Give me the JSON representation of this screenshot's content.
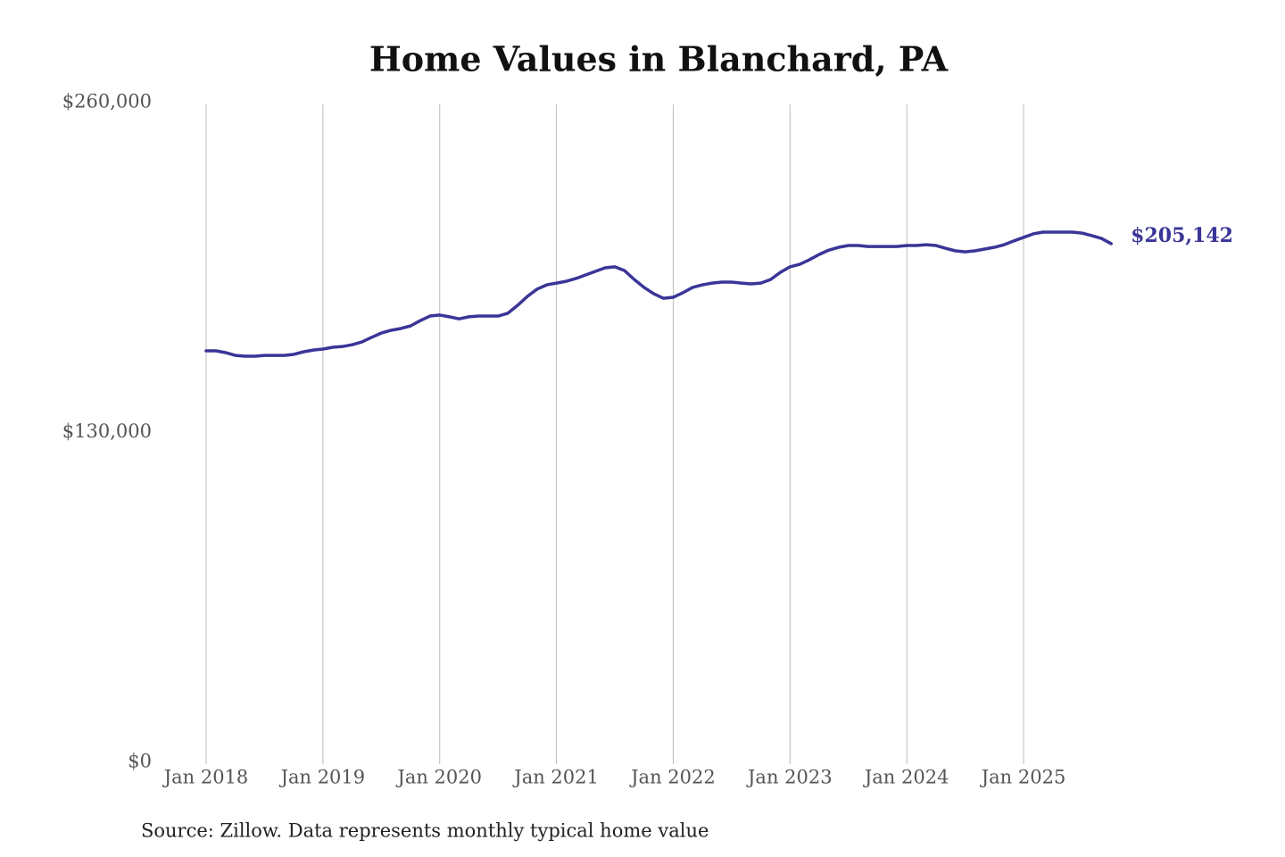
{
  "chart_data": {
    "type": "line",
    "title": "Home Values in Blanchard, PA",
    "source": "Source: Zillow. Data represents monthly typical home value",
    "categories": [
      "Jan 2018",
      null,
      null,
      null,
      null,
      null,
      null,
      null,
      null,
      null,
      null,
      null,
      "Jan 2019",
      null,
      null,
      null,
      null,
      null,
      null,
      null,
      null,
      null,
      null,
      null,
      "Jan 2020",
      null,
      null,
      null,
      null,
      null,
      null,
      null,
      null,
      null,
      null,
      null,
      "Jan 2021",
      null,
      null,
      null,
      null,
      null,
      null,
      null,
      null,
      null,
      null,
      null,
      "Jan 2022",
      null,
      null,
      null,
      null,
      null,
      null,
      null,
      null,
      null,
      null,
      null,
      "Jan 2023",
      null,
      null,
      null,
      null,
      null,
      null,
      null,
      null,
      null,
      null,
      null,
      "Jan 2024",
      null,
      null,
      null,
      null,
      null,
      null,
      null,
      null,
      null,
      null,
      null,
      "Jan 2025",
      null,
      null,
      null,
      null,
      null,
      null,
      null,
      null,
      null
    ],
    "series": [
      {
        "color": "#3a3597",
        "values": [
          162900,
          162900,
          162200,
          161100,
          160800,
          160800,
          161100,
          161100,
          161100,
          161500,
          162500,
          163200,
          163600,
          164300,
          164600,
          165300,
          166400,
          168200,
          169900,
          171000,
          171700,
          172700,
          174800,
          176600,
          177000,
          176300,
          175500,
          176300,
          176600,
          176600,
          176600,
          177700,
          180800,
          184300,
          187200,
          188900,
          189600,
          190300,
          191400,
          192800,
          194200,
          195600,
          196000,
          194500,
          191000,
          187900,
          185400,
          183600,
          184000,
          185800,
          187900,
          188900,
          189600,
          190000,
          190000,
          189600,
          189300,
          189600,
          191000,
          193800,
          196000,
          197000,
          198800,
          200900,
          202600,
          203700,
          204400,
          204400,
          204000,
          204000,
          204000,
          204000,
          204400,
          204400,
          204700,
          204400,
          203300,
          202300,
          201900,
          202300,
          203000,
          203700,
          204700,
          206200,
          207600,
          209000,
          209700,
          209700,
          209700,
          209700,
          209300,
          208300,
          207200,
          205142
        ],
        "value_labels": [
          null,
          null,
          null,
          null,
          null,
          null,
          null,
          null,
          null,
          null,
          null,
          null,
          null,
          null,
          null,
          null,
          null,
          null,
          null,
          null,
          null,
          null,
          null,
          null,
          null,
          null,
          null,
          null,
          null,
          null,
          null,
          null,
          null,
          null,
          null,
          null,
          null,
          null,
          null,
          null,
          null,
          null,
          null,
          null,
          null,
          null,
          null,
          null,
          null,
          null,
          null,
          null,
          null,
          null,
          null,
          null,
          null,
          null,
          null,
          null,
          null,
          null,
          null,
          null,
          null,
          null,
          null,
          null,
          null,
          null,
          null,
          null,
          null,
          null,
          null,
          null,
          null,
          null,
          null,
          null,
          null,
          null,
          null,
          null,
          null,
          null,
          null,
          null,
          null,
          null,
          null,
          null,
          null,
          "$205,142"
        ]
      }
    ],
    "ylim": [
      0,
      260000
    ],
    "yticks": [
      {
        "value": 0,
        "label": "$0"
      },
      {
        "value": 130000,
        "label": "$130,000"
      },
      {
        "value": 260000,
        "label": "$260,000"
      }
    ],
    "grid": true
  }
}
